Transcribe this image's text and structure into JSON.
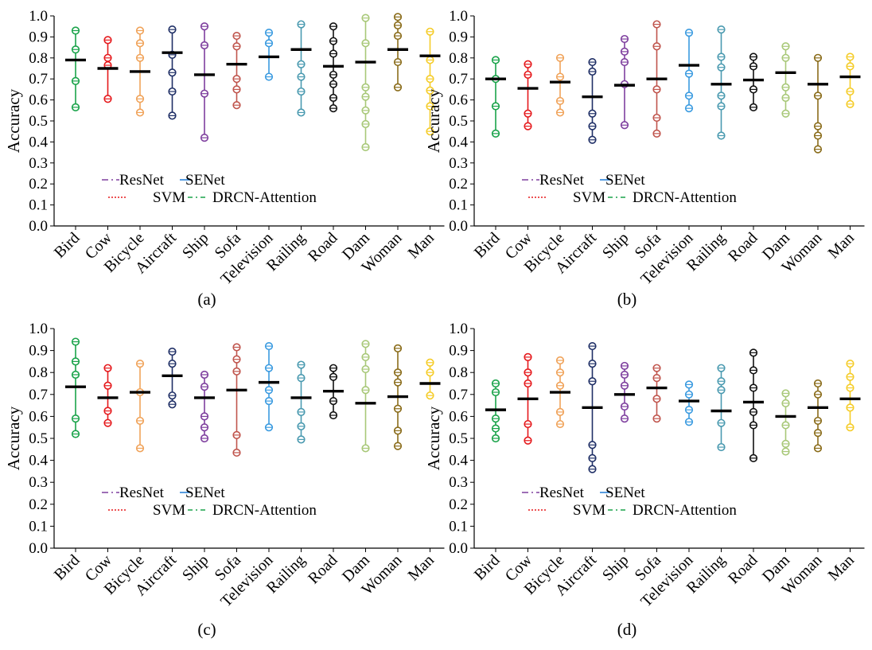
{
  "chart_data": [
    {
      "type": "scatter",
      "label": "(a)",
      "ylabel": "Accuracy",
      "ylim": [
        0,
        1
      ],
      "yticks": [
        "0.0",
        "0.1",
        "0.2",
        "0.3",
        "0.4",
        "0.5",
        "0.6",
        "0.7",
        "0.8",
        "0.9",
        "1.0"
      ],
      "categories": [
        "Bird",
        "Cow",
        "Bicycle",
        "Aircraft",
        "Ship",
        "Sofa",
        "Television",
        "Railing",
        "Road",
        "Dam",
        "Woman",
        "Man"
      ],
      "series": [
        {
          "name": "Bird",
          "color": "#1aa34a",
          "mean": 0.79,
          "values": [
            0.93,
            0.84,
            0.69,
            0.565
          ]
        },
        {
          "name": "Cow",
          "color": "#e5191c",
          "mean": 0.75,
          "values": [
            0.885,
            0.8,
            0.765,
            0.605
          ]
        },
        {
          "name": "Bicycle",
          "color": "#f0a35a",
          "mean": 0.735,
          "values": [
            0.93,
            0.87,
            0.8,
            0.605,
            0.54
          ]
        },
        {
          "name": "Aircraft",
          "color": "#1f2f66",
          "mean": 0.825,
          "values": [
            0.935,
            0.815,
            0.73,
            0.64,
            0.525
          ]
        },
        {
          "name": "Ship",
          "color": "#7e3f9e",
          "mean": 0.72,
          "values": [
            0.95,
            0.86,
            0.63,
            0.42
          ]
        },
        {
          "name": "Sofa",
          "color": "#c0554d",
          "mean": 0.77,
          "values": [
            0.905,
            0.855,
            0.7,
            0.65,
            0.575
          ]
        },
        {
          "name": "Television",
          "color": "#3b9be0",
          "mean": 0.805,
          "values": [
            0.92,
            0.87,
            0.71
          ]
        },
        {
          "name": "Railing",
          "color": "#4a9ab0",
          "mean": 0.84,
          "values": [
            0.96,
            0.77,
            0.71,
            0.64,
            0.54
          ]
        },
        {
          "name": "Road",
          "color": "#111111",
          "mean": 0.76,
          "values": [
            0.95,
            0.88,
            0.82,
            0.72,
            0.675,
            0.61,
            0.56
          ]
        },
        {
          "name": "Dam",
          "color": "#a8c878",
          "mean": 0.78,
          "values": [
            0.99,
            0.87,
            0.66,
            0.615,
            0.55,
            0.485,
            0.375
          ]
        },
        {
          "name": "Woman",
          "color": "#8a6c1a",
          "mean": 0.84,
          "values": [
            0.995,
            0.955,
            0.905,
            0.78,
            0.66
          ]
        },
        {
          "name": "Man",
          "color": "#f5cc28",
          "mean": 0.81,
          "values": [
            0.925,
            0.79,
            0.7,
            0.645,
            0.57,
            0.45
          ]
        }
      ],
      "legend": [
        "ResNet",
        "SENet",
        "SVM",
        "DRCN-Attention"
      ]
    },
    {
      "type": "scatter",
      "label": "(b)",
      "ylabel": "Accuracy",
      "ylim": [
        0,
        1
      ],
      "yticks": [
        "0.0",
        "0.1",
        "0.2",
        "0.3",
        "0.4",
        "0.5",
        "0.6",
        "0.7",
        "0.8",
        "0.9",
        "1.0"
      ],
      "categories": [
        "Bird",
        "Cow",
        "Bicycle",
        "Aircraft",
        "Ship",
        "Sofa",
        "Television",
        "Railing",
        "Road",
        "Dam",
        "Woman",
        "Man"
      ],
      "series": [
        {
          "name": "Bird",
          "color": "#1aa34a",
          "mean": 0.7,
          "values": [
            0.79,
            0.7,
            0.57,
            0.44
          ]
        },
        {
          "name": "Cow",
          "color": "#e5191c",
          "mean": 0.655,
          "values": [
            0.77,
            0.72,
            0.535,
            0.475
          ]
        },
        {
          "name": "Bicycle",
          "color": "#f0a35a",
          "mean": 0.685,
          "values": [
            0.8,
            0.71,
            0.595,
            0.54
          ]
        },
        {
          "name": "Aircraft",
          "color": "#1f2f66",
          "mean": 0.615,
          "values": [
            0.78,
            0.735,
            0.535,
            0.475,
            0.41
          ]
        },
        {
          "name": "Ship",
          "color": "#7e3f9e",
          "mean": 0.67,
          "values": [
            0.89,
            0.83,
            0.78,
            0.675,
            0.48
          ]
        },
        {
          "name": "Sofa",
          "color": "#c0554d",
          "mean": 0.7,
          "values": [
            0.96,
            0.855,
            0.65,
            0.515,
            0.44
          ]
        },
        {
          "name": "Television",
          "color": "#3b9be0",
          "mean": 0.765,
          "values": [
            0.92,
            0.725,
            0.62,
            0.56
          ]
        },
        {
          "name": "Railing",
          "color": "#4a9ab0",
          "mean": 0.675,
          "values": [
            0.935,
            0.805,
            0.755,
            0.62,
            0.57,
            0.43
          ]
        },
        {
          "name": "Road",
          "color": "#111111",
          "mean": 0.695,
          "values": [
            0.805,
            0.76,
            0.65,
            0.565
          ]
        },
        {
          "name": "Dam",
          "color": "#a8c878",
          "mean": 0.73,
          "values": [
            0.855,
            0.8,
            0.66,
            0.61,
            0.535
          ]
        },
        {
          "name": "Woman",
          "color": "#8a6c1a",
          "mean": 0.675,
          "values": [
            0.8,
            0.62,
            0.475,
            0.43,
            0.365
          ]
        },
        {
          "name": "Man",
          "color": "#f5cc28",
          "mean": 0.71,
          "values": [
            0.805,
            0.76,
            0.64,
            0.58
          ]
        }
      ],
      "legend": [
        "ResNet",
        "SENet",
        "SVM",
        "DRCN-Attention"
      ]
    },
    {
      "type": "scatter",
      "label": "(c)",
      "ylabel": "Accuracy",
      "ylim": [
        0,
        1
      ],
      "yticks": [
        "0.0",
        "0.1",
        "0.2",
        "0.3",
        "0.4",
        "0.5",
        "0.6",
        "0.7",
        "0.8",
        "0.9",
        "1.0"
      ],
      "categories": [
        "Bird",
        "Cow",
        "Bicycle",
        "Aircraft",
        "Ship",
        "Sofa",
        "Television",
        "Railing",
        "Road",
        "Dam",
        "Woman",
        "Man"
      ],
      "series": [
        {
          "name": "Bird",
          "color": "#1aa34a",
          "mean": 0.735,
          "values": [
            0.94,
            0.85,
            0.79,
            0.59,
            0.52
          ]
        },
        {
          "name": "Cow",
          "color": "#e5191c",
          "mean": 0.685,
          "values": [
            0.82,
            0.74,
            0.625,
            0.57
          ]
        },
        {
          "name": "Bicycle",
          "color": "#f0a35a",
          "mean": 0.71,
          "values": [
            0.84,
            0.71,
            0.58,
            0.455
          ]
        },
        {
          "name": "Aircraft",
          "color": "#1f2f66",
          "mean": 0.785,
          "values": [
            0.895,
            0.84,
            0.695,
            0.655
          ]
        },
        {
          "name": "Ship",
          "color": "#7e3f9e",
          "mean": 0.685,
          "values": [
            0.79,
            0.735,
            0.6,
            0.55,
            0.5
          ]
        },
        {
          "name": "Sofa",
          "color": "#c0554d",
          "mean": 0.72,
          "values": [
            0.915,
            0.86,
            0.805,
            0.515,
            0.435
          ]
        },
        {
          "name": "Television",
          "color": "#3b9be0",
          "mean": 0.755,
          "values": [
            0.92,
            0.82,
            0.72,
            0.67,
            0.55
          ]
        },
        {
          "name": "Railing",
          "color": "#4a9ab0",
          "mean": 0.685,
          "values": [
            0.835,
            0.775,
            0.62,
            0.555,
            0.495
          ]
        },
        {
          "name": "Road",
          "color": "#111111",
          "mean": 0.715,
          "values": [
            0.82,
            0.78,
            0.67,
            0.605
          ]
        },
        {
          "name": "Dam",
          "color": "#a8c878",
          "mean": 0.66,
          "values": [
            0.93,
            0.87,
            0.815,
            0.72,
            0.455
          ]
        },
        {
          "name": "Woman",
          "color": "#8a6c1a",
          "mean": 0.69,
          "values": [
            0.91,
            0.8,
            0.755,
            0.635,
            0.535,
            0.465
          ]
        },
        {
          "name": "Man",
          "color": "#f5cc28",
          "mean": 0.75,
          "values": [
            0.845,
            0.8,
            0.695
          ]
        }
      ],
      "legend": [
        "ResNet",
        "SENet",
        "SVM",
        "DRCN-Attention"
      ]
    },
    {
      "type": "scatter",
      "label": "(d)",
      "ylabel": "Accuracy",
      "ylim": [
        0,
        1
      ],
      "yticks": [
        "0.0",
        "0.1",
        "0.2",
        "0.3",
        "0.4",
        "0.5",
        "0.6",
        "0.7",
        "0.8",
        "0.9",
        "1.0"
      ],
      "categories": [
        "Bird",
        "Cow",
        "Bicycle",
        "Aircraft",
        "Ship",
        "Sofa",
        "Television",
        "Railing",
        "Road",
        "Dam",
        "Woman",
        "Man"
      ],
      "series": [
        {
          "name": "Bird",
          "color": "#1aa34a",
          "mean": 0.63,
          "values": [
            0.75,
            0.71,
            0.59,
            0.545,
            0.5
          ]
        },
        {
          "name": "Cow",
          "color": "#e5191c",
          "mean": 0.68,
          "values": [
            0.87,
            0.8,
            0.75,
            0.565,
            0.49
          ]
        },
        {
          "name": "Bicycle",
          "color": "#f0a35a",
          "mean": 0.71,
          "values": [
            0.855,
            0.8,
            0.74,
            0.62,
            0.565
          ]
        },
        {
          "name": "Aircraft",
          "color": "#1f2f66",
          "mean": 0.64,
          "values": [
            0.92,
            0.84,
            0.76,
            0.47,
            0.41,
            0.36
          ]
        },
        {
          "name": "Ship",
          "color": "#7e3f9e",
          "mean": 0.7,
          "values": [
            0.83,
            0.79,
            0.74,
            0.645,
            0.59
          ]
        },
        {
          "name": "Sofa",
          "color": "#c0554d",
          "mean": 0.73,
          "values": [
            0.82,
            0.775,
            0.68,
            0.59
          ]
        },
        {
          "name": "Television",
          "color": "#3b9be0",
          "mean": 0.67,
          "values": [
            0.745,
            0.7,
            0.63,
            0.575
          ]
        },
        {
          "name": "Railing",
          "color": "#4a9ab0",
          "mean": 0.625,
          "values": [
            0.82,
            0.76,
            0.72,
            0.57,
            0.46
          ]
        },
        {
          "name": "Road",
          "color": "#111111",
          "mean": 0.665,
          "values": [
            0.89,
            0.81,
            0.73,
            0.62,
            0.56,
            0.41
          ]
        },
        {
          "name": "Dam",
          "color": "#a8c878",
          "mean": 0.6,
          "values": [
            0.705,
            0.66,
            0.56,
            0.475,
            0.44
          ]
        },
        {
          "name": "Woman",
          "color": "#8a6c1a",
          "mean": 0.64,
          "values": [
            0.75,
            0.7,
            0.58,
            0.525,
            0.455
          ]
        },
        {
          "name": "Man",
          "color": "#f5cc28",
          "mean": 0.68,
          "values": [
            0.84,
            0.78,
            0.73,
            0.64,
            0.55
          ]
        }
      ],
      "legend": [
        "ResNet",
        "SENet",
        "SVM",
        "DRCN-Attention"
      ]
    }
  ],
  "legend_styles": [
    {
      "name": "ResNet",
      "color": "#7e3f9e",
      "dash": "8,4,2,4"
    },
    {
      "name": "SENet",
      "color": "#1f7bd6",
      "dash": "14,6"
    },
    {
      "name": "SVM",
      "color": "#e5191c",
      "dash": "2,2"
    },
    {
      "name": "DRCN-Attention",
      "color": "#1aa34a",
      "dash": "6,4,2,4"
    }
  ]
}
